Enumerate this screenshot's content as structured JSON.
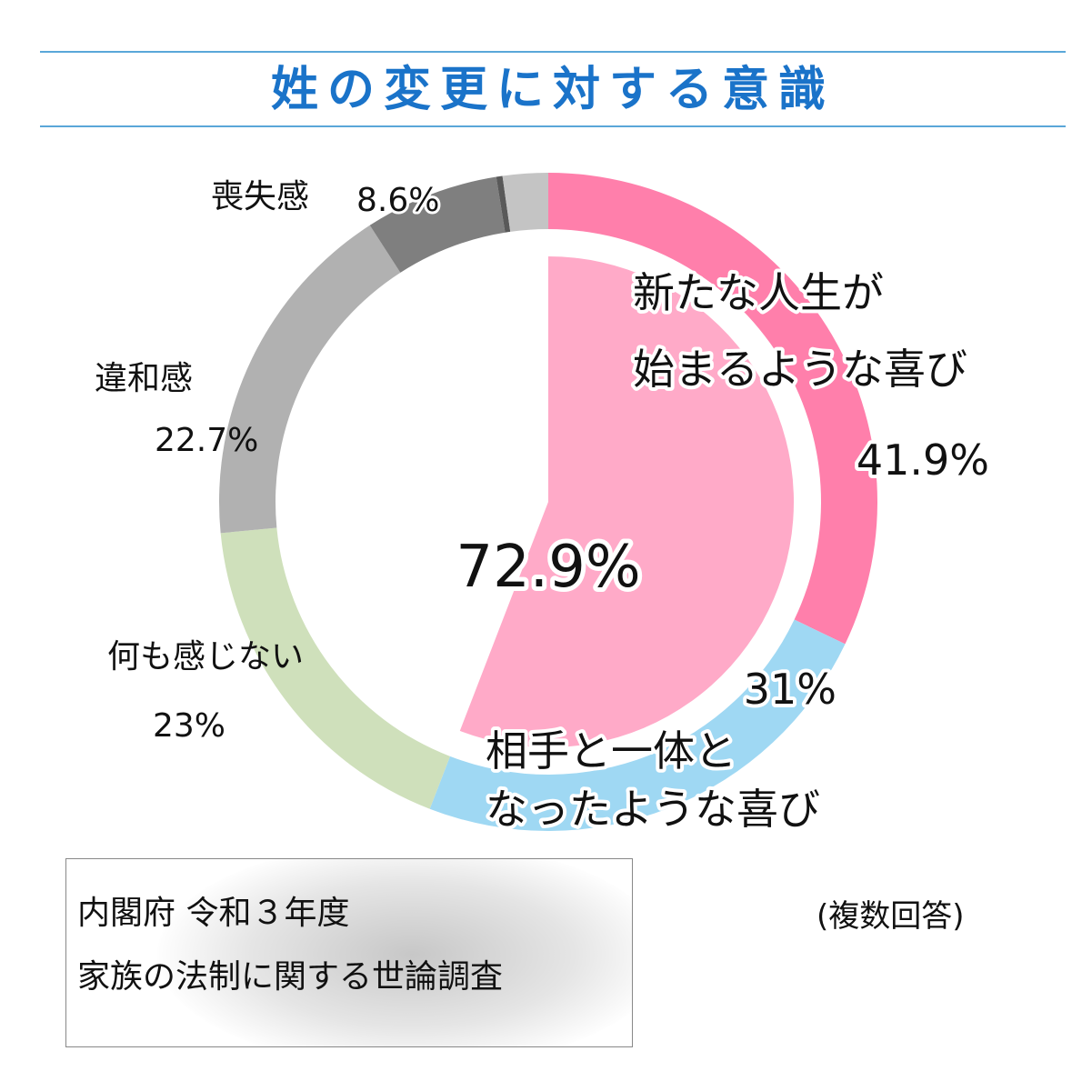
{
  "title": "姓の変更に対する意識",
  "chart_data": {
    "type": "pie",
    "note": "(複数回答)",
    "source_line1": "内閣府 令和３年度",
    "source_line2": "家族の法制に関する世論調査",
    "positive_total": "72.9%",
    "outer_ring": [
      {
        "name": "新たな人生が始まるような喜び",
        "label_line1": "新たな人生が",
        "label_line2": "始まるような喜び",
        "value": 41.9,
        "value_label": "41.9%",
        "color": "#ff7fab"
      },
      {
        "name": "相手と一体となったような喜び",
        "label_line1": "相手と一体と",
        "label_line2": "なったような喜び",
        "value": 31,
        "value_label": "31%",
        "color": "#9fd8f3"
      },
      {
        "name": "何も感じない",
        "label_line1": "何も感じない",
        "value": 23,
        "value_label": "23%",
        "color": "#cfe0bb"
      },
      {
        "name": "違和感",
        "label_line1": "違和感",
        "value": 22.7,
        "value_label": "22.7%",
        "color": "#b1b1b1"
      },
      {
        "name": "喪失感",
        "label_line1": "喪失感",
        "value": 8.6,
        "value_label": "8.6%",
        "color": "#7f7f7f"
      },
      {
        "name": "",
        "value": 0.4,
        "color": "#595959"
      },
      {
        "name": "",
        "value": 2.9,
        "color": "#c4c4c4"
      }
    ],
    "inner_slice": {
      "value": 72.9,
      "color": "#ffaac8",
      "label_color": "#e8262e"
    }
  }
}
